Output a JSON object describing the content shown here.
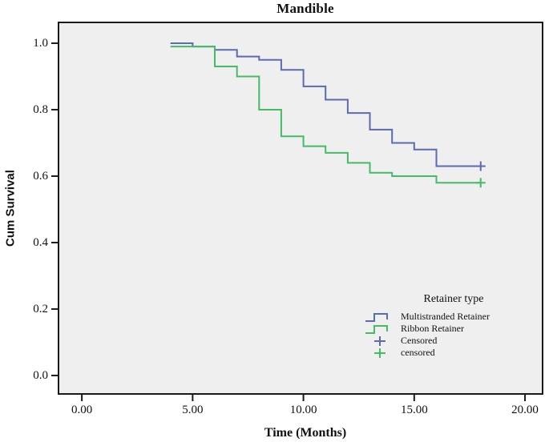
{
  "chart_data": {
    "type": "line",
    "subtype": "kaplan-meier-step-survival",
    "title": "Mandible",
    "xlabel": "Time (Months)",
    "ylabel": "Cum Survival",
    "xlim": [
      -1.09,
      20.83
    ],
    "ylim": [
      -0.058,
      1.065
    ],
    "xticks": [
      0,
      5,
      10,
      15,
      20
    ],
    "xtick_labels": [
      "0.00",
      "5.00",
      "10.00",
      "15.00",
      "20.00"
    ],
    "yticks": [
      1.0,
      0.8,
      0.6,
      0.4,
      0.2,
      0.0
    ],
    "ytick_labels": [
      "1.0",
      "0.8",
      "0.6",
      "0.4",
      "0.2",
      "0.0"
    ],
    "grid": false,
    "colors": {
      "frame": "#1a1a1a",
      "plot_bg": "#EFEFEF",
      "multistranded_blue": "#5A6AB4",
      "ribbon_green": "#45BB66"
    },
    "legend": {
      "title": "Retainer type",
      "position": "lower-right",
      "items": [
        {
          "label": "Multistranded Retainer",
          "marker": "step-line",
          "color": "#5A6AB4"
        },
        {
          "label": "Ribbon Retainer",
          "marker": "step-line",
          "color": "#45BB66"
        },
        {
          "label": "Censored",
          "marker": "plus",
          "color": "#5A6AB4"
        },
        {
          "label": "censored",
          "marker": "plus",
          "color": "#45BB66"
        }
      ]
    },
    "series": [
      {
        "name": "Multistranded Retainer",
        "color": "#5A6AB4",
        "points": [
          [
            4,
            1.0
          ],
          [
            5,
            0.99
          ],
          [
            6,
            0.98
          ],
          [
            7,
            0.96
          ],
          [
            8,
            0.95
          ],
          [
            9,
            0.92
          ],
          [
            10,
            0.87
          ],
          [
            11,
            0.83
          ],
          [
            12,
            0.79
          ],
          [
            13,
            0.74
          ],
          [
            14,
            0.7
          ],
          [
            15,
            0.68
          ],
          [
            16,
            0.63
          ],
          [
            18,
            0.63
          ]
        ],
        "censored_points": [
          [
            18,
            0.63
          ]
        ]
      },
      {
        "name": "Ribbon Retainer",
        "color": "#45BB66",
        "points": [
          [
            4,
            0.99
          ],
          [
            6,
            0.93
          ],
          [
            7,
            0.9
          ],
          [
            8,
            0.8
          ],
          [
            9,
            0.72
          ],
          [
            10,
            0.69
          ],
          [
            11,
            0.67
          ],
          [
            12,
            0.64
          ],
          [
            13,
            0.61
          ],
          [
            14,
            0.6
          ],
          [
            16,
            0.58
          ],
          [
            18,
            0.58
          ]
        ],
        "censored_points": [
          [
            18,
            0.58
          ]
        ]
      }
    ]
  }
}
